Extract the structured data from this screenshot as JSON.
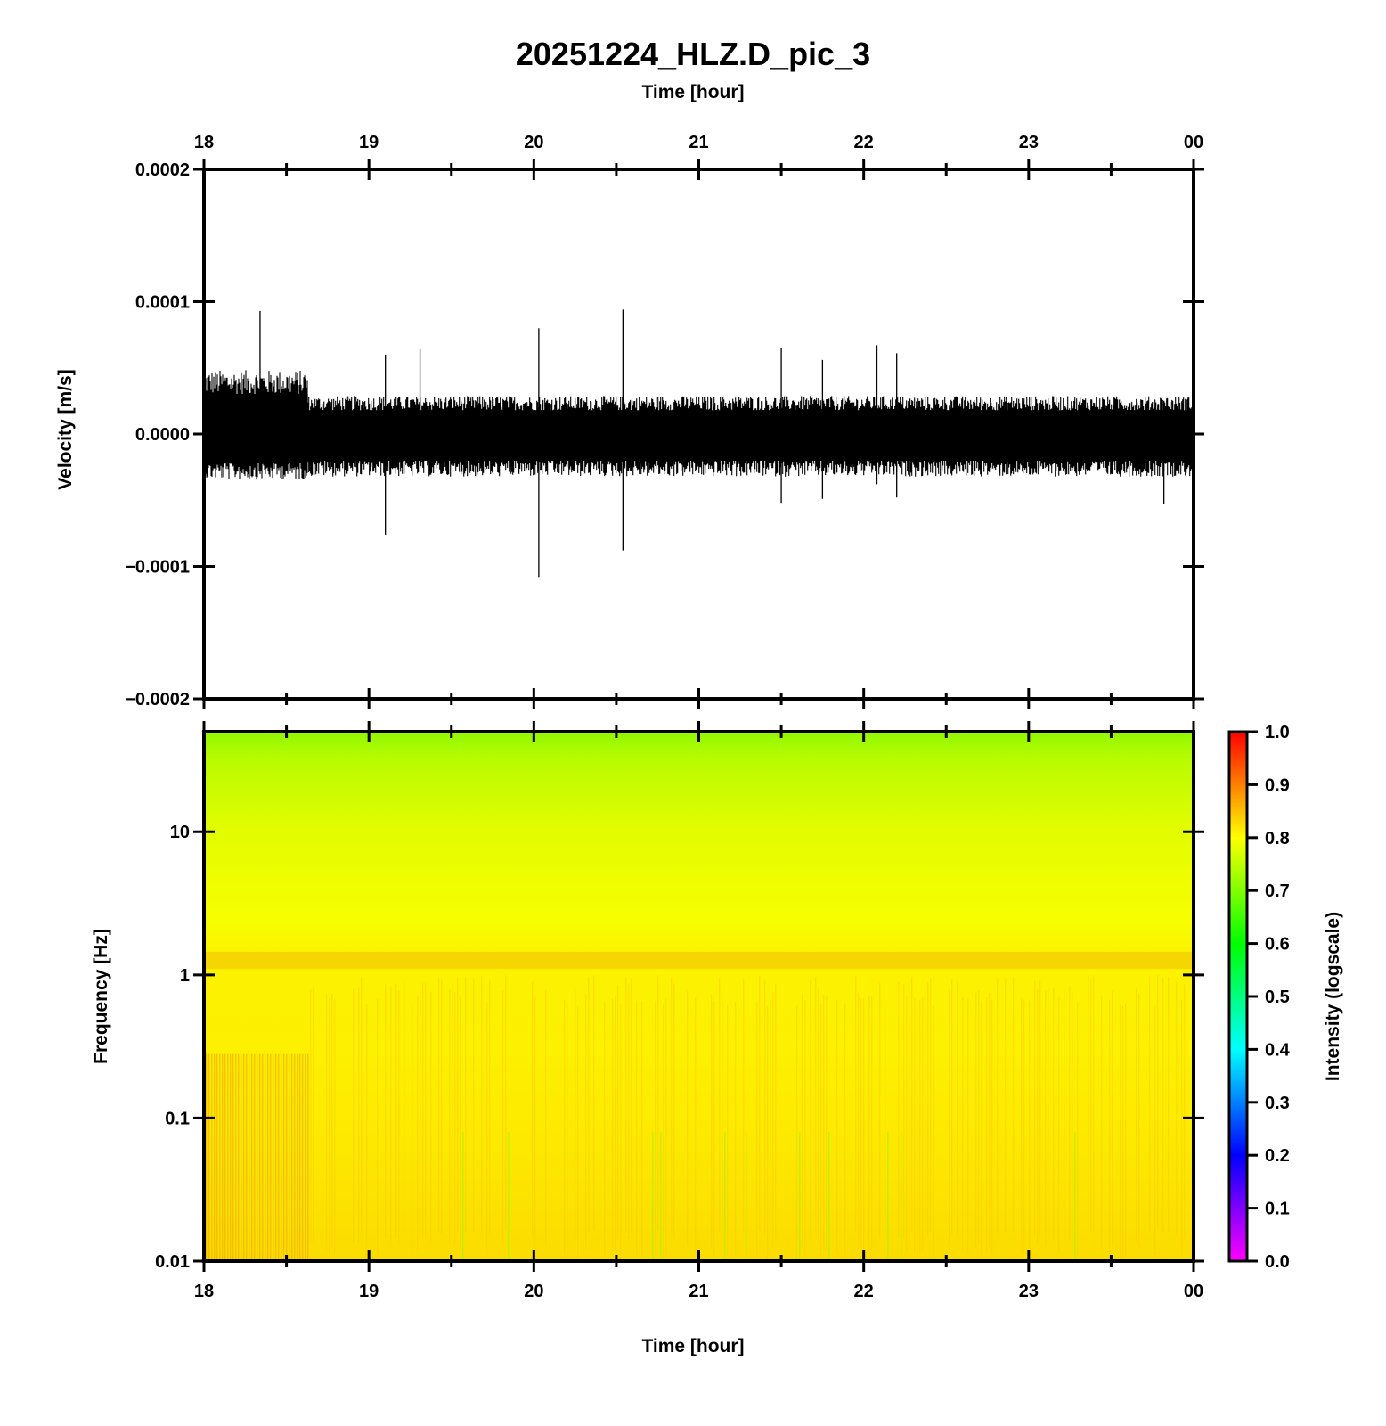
{
  "title": "20251224_HLZ.D_pic_3",
  "chart_data": [
    {
      "type": "line",
      "panel": "waveform",
      "title": "",
      "xlabel_top": "Time [hour]",
      "ylabel": "Velocity [m/s]",
      "x_range_hours": [
        18,
        24
      ],
      "x_ticks": [
        "18",
        "19",
        "20",
        "21",
        "22",
        "23",
        "00"
      ],
      "ylim": [
        -0.0002,
        0.0002
      ],
      "y_ticks": [
        "0.0002",
        "0.0001",
        "0.0000",
        "−0.0001",
        "−0.0002"
      ],
      "y_tick_values": [
        0.0002,
        0.0001,
        0.0,
        -0.0001,
        -0.0002
      ],
      "series": [
        {
          "noise_envelope": [
            {
              "t_start": 18.0,
              "t_end": 18.63,
              "upper": 4.2e-05,
              "lower": -3e-05
            },
            {
              "t_start": 18.63,
              "t_end": 24.0,
              "upper": 2.5e-05,
              "lower": -2.8e-05
            }
          ],
          "spikes": [
            {
              "t": 18.34,
              "max": 9.3e-05,
              "min": -2e-05
            },
            {
              "t": 19.1,
              "max": 6e-05,
              "min": -7.6e-05
            },
            {
              "t": 19.31,
              "max": 6.4e-05,
              "min": -2e-05
            },
            {
              "t": 20.03,
              "max": 8e-05,
              "min": -0.000108
            },
            {
              "t": 20.54,
              "max": 9.4e-05,
              "min": -8.8e-05
            },
            {
              "t": 21.5,
              "max": 6.5e-05,
              "min": -5.2e-05
            },
            {
              "t": 21.75,
              "max": 5.6e-05,
              "min": -4.9e-05
            },
            {
              "t": 22.08,
              "max": 6.7e-05,
              "min": -3.8e-05
            },
            {
              "t": 22.2,
              "max": 6.1e-05,
              "min": -4.8e-05
            },
            {
              "t": 23.82,
              "max": 2.5e-05,
              "min": -5.3e-05
            }
          ]
        }
      ]
    },
    {
      "type": "heatmap",
      "panel": "spectrogram",
      "title": "",
      "xlabel": "Time [hour]",
      "ylabel": "Frequency [Hz]",
      "x_range_hours": [
        18,
        24
      ],
      "x_ticks": [
        "18",
        "19",
        "20",
        "21",
        "22",
        "23",
        "00"
      ],
      "y_scale": "log",
      "ylim_hz": [
        0.01,
        50
      ],
      "y_ticks": [
        "10",
        "1",
        "0.1",
        "0.01"
      ],
      "y_tick_values": [
        10,
        1,
        0.1,
        0.01
      ],
      "colorbar": {
        "label": "Intensity (logscale)",
        "range": [
          0.0,
          1.0
        ],
        "ticks": [
          "1.0",
          "0.9",
          "0.8",
          "0.7",
          "0.6",
          "0.5",
          "0.4",
          "0.3",
          "0.2",
          "0.1",
          "0.0"
        ],
        "colors": [
          "#ff00ff",
          "#0000ff",
          "#00ffff",
          "#00ff00",
          "#ffff00",
          "#ff0000"
        ]
      },
      "intensity_by_frequency": [
        {
          "hz": 50,
          "intensity": 0.68
        },
        {
          "hz": 10,
          "intensity": 0.76
        },
        {
          "hz": 3,
          "intensity": 0.79
        },
        {
          "hz": 1.3,
          "intensity": 0.85
        },
        {
          "hz": 1,
          "intensity": 0.81
        },
        {
          "hz": 0.1,
          "intensity": 0.82
        },
        {
          "hz": 0.01,
          "intensity": 0.84
        }
      ]
    }
  ]
}
